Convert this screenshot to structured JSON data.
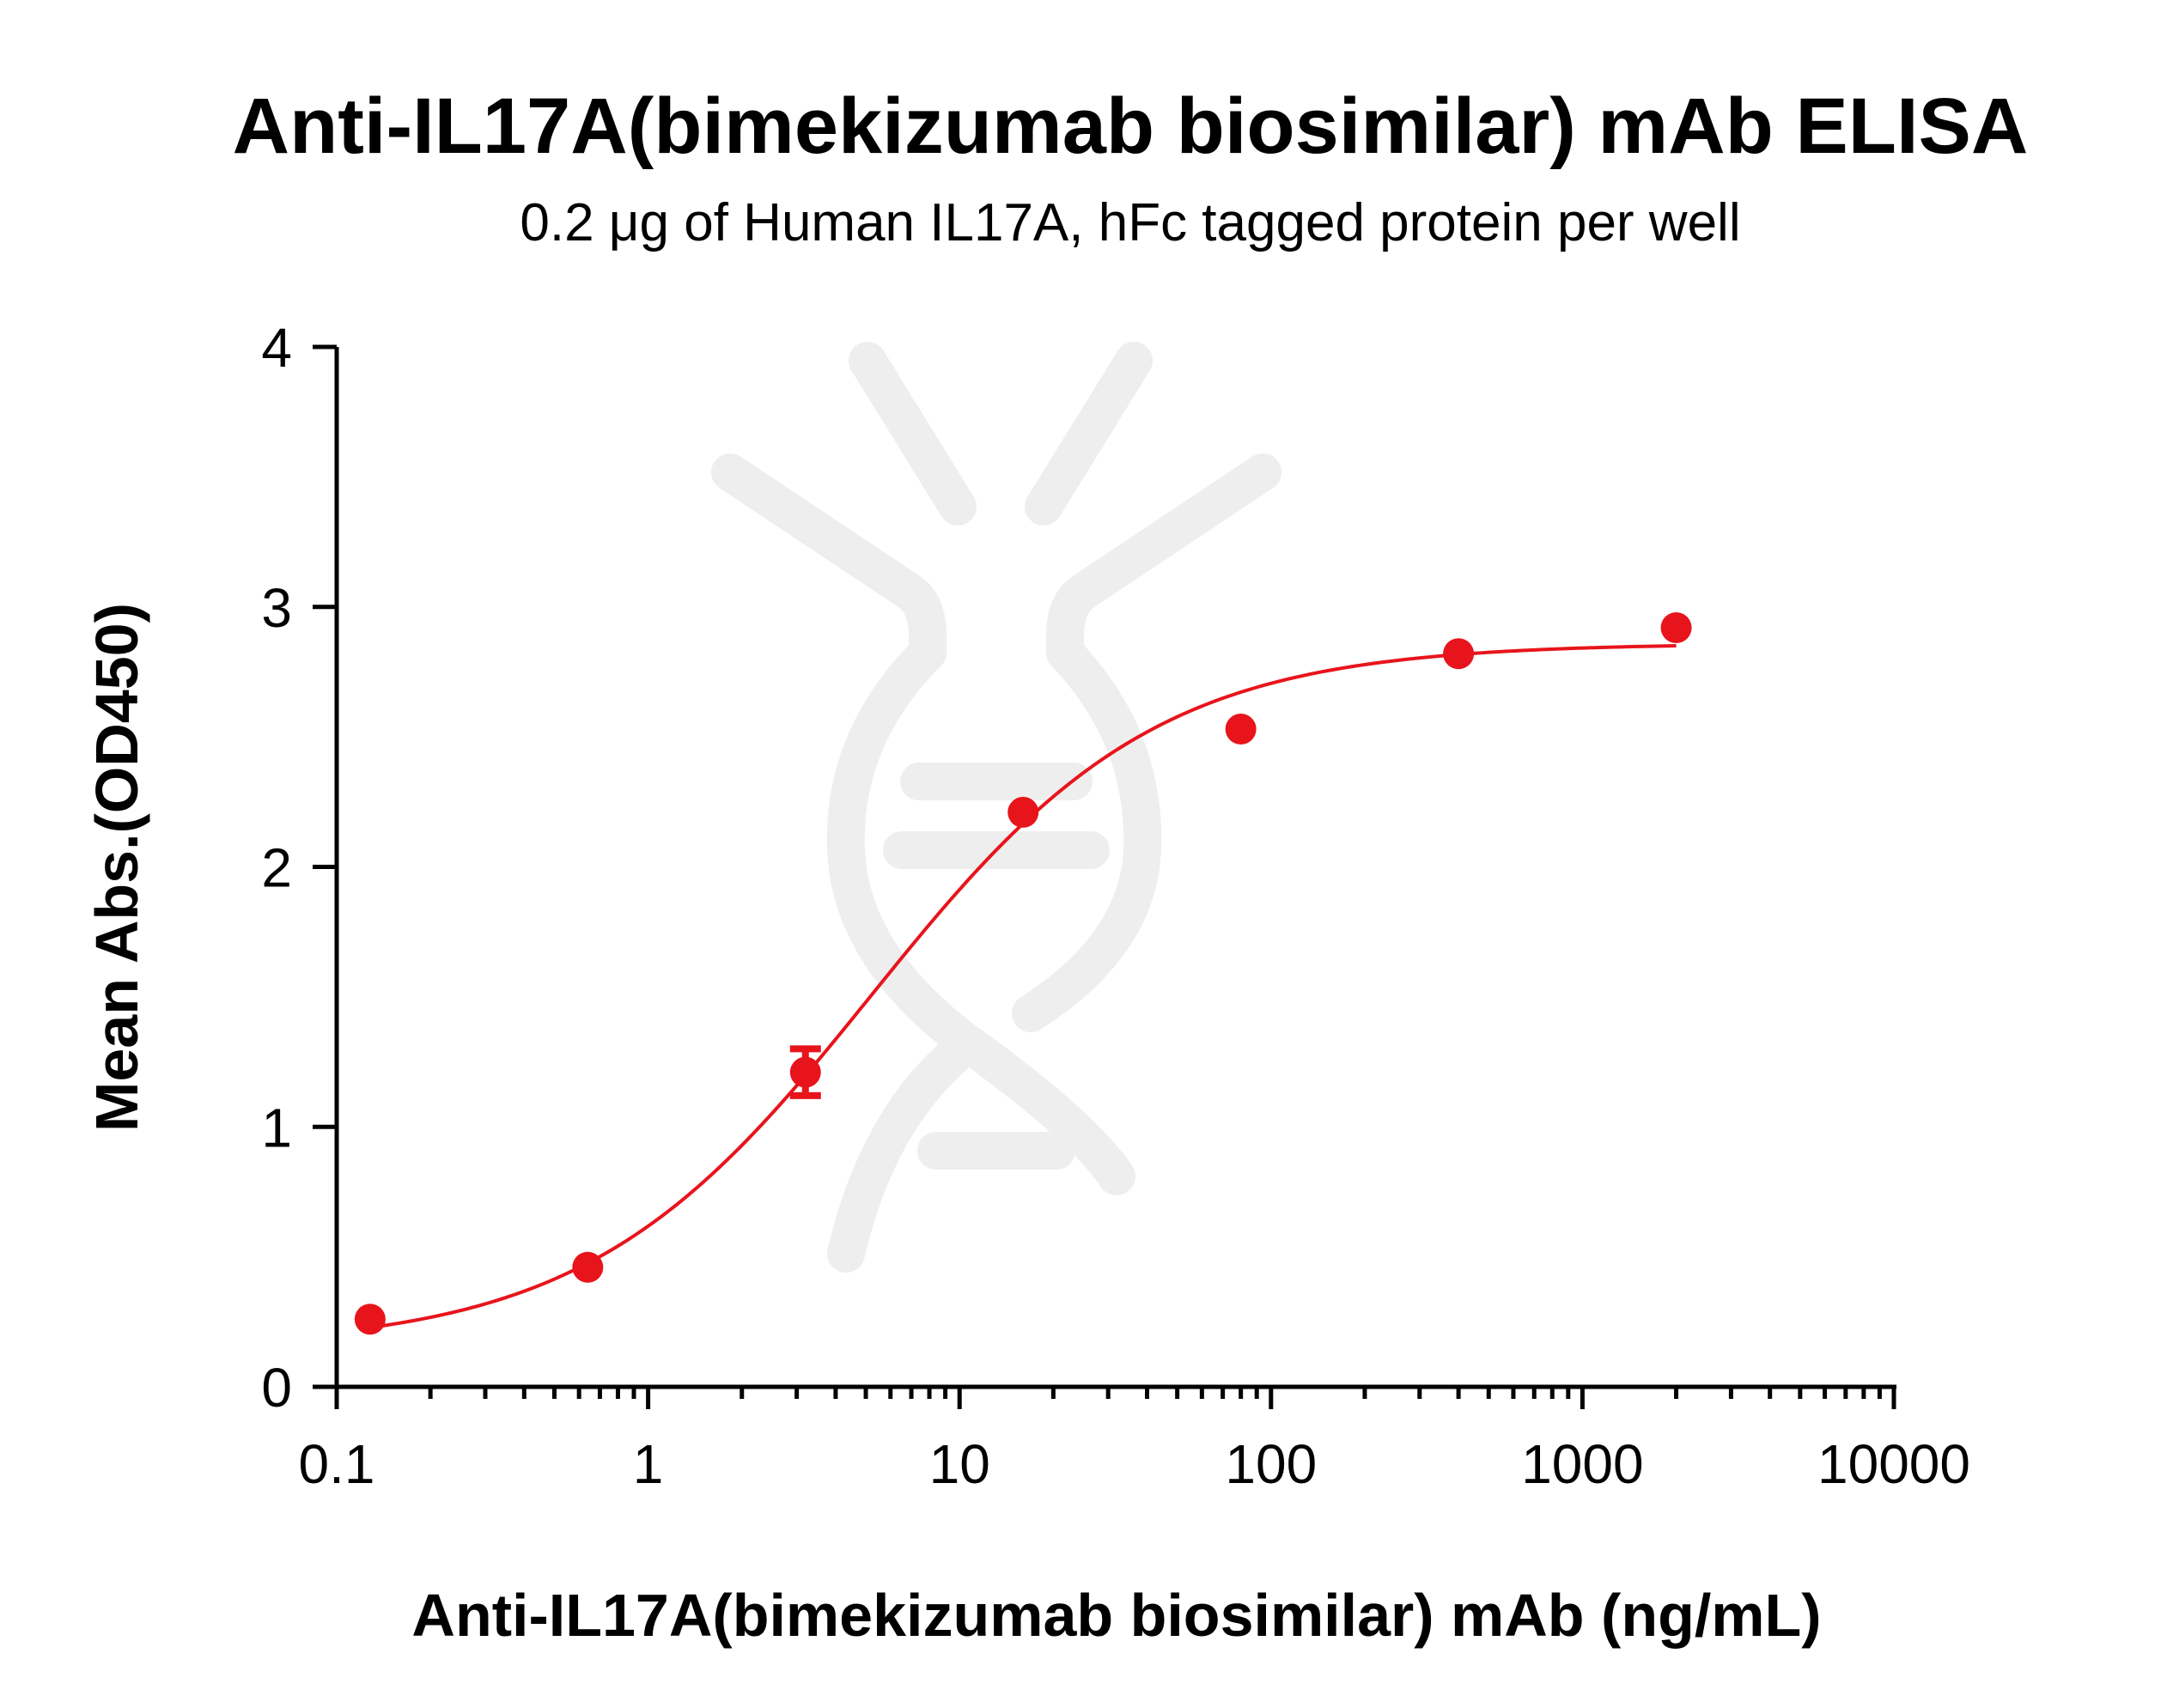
{
  "chart_data": {
    "type": "scatter",
    "title": "Anti-IL17A(bimekizumab biosimilar) mAb ELISA",
    "subtitle": "0.2 μg of Human IL17A, hFc tagged protein per well",
    "xlabel": "Anti-IL17A(bimekizumab biosimilar) mAb (ng/mL)",
    "ylabel": "Mean Abs.(OD450)",
    "x_scale": "log",
    "xlim": [
      0.1,
      10000
    ],
    "ylim": [
      0,
      4
    ],
    "x_ticks": [
      {
        "value": 0.1,
        "label": "0.1"
      },
      {
        "value": 1,
        "label": "1"
      },
      {
        "value": 10,
        "label": "10"
      },
      {
        "value": 100,
        "label": "100"
      },
      {
        "value": 1000,
        "label": "1000"
      },
      {
        "value": 10000,
        "label": "10000"
      }
    ],
    "y_ticks": [
      {
        "value": 0,
        "label": "0"
      },
      {
        "value": 1,
        "label": "1"
      },
      {
        "value": 2,
        "label": "2"
      },
      {
        "value": 3,
        "label": "3"
      },
      {
        "value": 4,
        "label": "4"
      }
    ],
    "grid": false,
    "legend": "none",
    "series": [
      {
        "color": "#e8141c",
        "points": [
          {
            "x": 0.128,
            "y": 0.26,
            "err": 0
          },
          {
            "x": 0.64,
            "y": 0.46,
            "err": 0
          },
          {
            "x": 3.2,
            "y": 1.21,
            "err": 0.09
          },
          {
            "x": 16,
            "y": 2.21,
            "err": 0
          },
          {
            "x": 80,
            "y": 2.53,
            "err": 0
          },
          {
            "x": 400,
            "y": 2.82,
            "err": 0
          },
          {
            "x": 2000,
            "y": 2.92,
            "err": 0
          }
        ],
        "fit": {
          "model": "4PL",
          "bottom": 0.15,
          "top": 2.86,
          "ec50": 5.2,
          "hill": 0.95,
          "x_range": [
            0.128,
            2000
          ]
        }
      }
    ]
  }
}
